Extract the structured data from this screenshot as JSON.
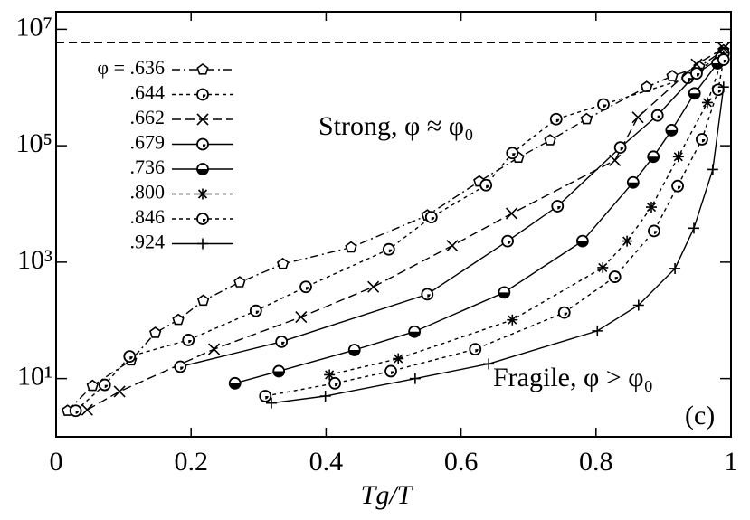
{
  "chart_data": {
    "type": "line",
    "xlabel": "Tg/T",
    "annotations": [
      "Strong, φ ≈ φ₀",
      "Fragile, φ > φ₀",
      "(c)"
    ],
    "xlim": [
      0,
      1
    ],
    "ylim": [
      1,
      20000000
    ],
    "ylog": true,
    "xticks": [
      0,
      0.2,
      0.4,
      0.6,
      0.8,
      1
    ],
    "yticks": [
      {
        "value": 10,
        "label": "10¹"
      },
      {
        "value": 1000,
        "label": "10³"
      },
      {
        "value": 100000,
        "label": "10⁵"
      },
      {
        "value": 10000000,
        "label": "10⁷"
      }
    ],
    "hline": 6000000,
    "legend": "top-left",
    "series": [
      {
        "name": "φ = .636",
        "color": "#000000",
        "marker": "pentagon",
        "dash": "9,4,2,4",
        "x": [
          0.017,
          0.054,
          0.111,
          0.147,
          0.181,
          0.218,
          0.272,
          0.336,
          0.437,
          0.55,
          0.627,
          0.685,
          0.732,
          0.786,
          0.875,
          0.913,
          0.953,
          0.989
        ],
        "values": [
          2.8,
          7.5,
          20.6,
          61,
          102,
          218,
          451,
          931,
          1790,
          6350,
          24300,
          62400,
          124000,
          286000,
          1020000,
          1570000,
          2260000,
          4350000
        ]
      },
      {
        "name": ".644",
        "color": "#000000",
        "marker": "circle",
        "dash": "4,4",
        "x": [
          0.029,
          0.072,
          0.109,
          0.196,
          0.296,
          0.37,
          0.493,
          0.556,
          0.637,
          0.676,
          0.741,
          0.811,
          0.936,
          0.989
        ],
        "values": [
          2.8,
          7.8,
          24,
          46,
          146,
          376,
          1660,
          5920,
          21000,
          74800,
          286000,
          512000,
          1460000,
          3900000
        ]
      },
      {
        "name": ".662",
        "color": "#000000",
        "marker": "x",
        "dash": "10,5",
        "x": [
          0.046,
          0.094,
          0.234,
          0.363,
          0.47,
          0.587,
          0.675,
          0.828,
          0.862,
          0.949,
          0.989
        ],
        "values": [
          2.9,
          6.0,
          32,
          114,
          376,
          1920,
          6840,
          56000,
          308000,
          2500000,
          4700000
        ]
      },
      {
        "name": ".679",
        "color": "#000000",
        "marker": "circle",
        "dash": "",
        "x": [
          0.184,
          0.334,
          0.55,
          0.669,
          0.743,
          0.836,
          0.891,
          0.949,
          0.985
        ],
        "values": [
          16,
          43,
          281,
          2300,
          9140,
          93000,
          331000,
          1750000,
          3250000
        ]
      },
      {
        "name": ".736",
        "color": "#000000",
        "marker": "half",
        "dash": "",
        "x": [
          0.265,
          0.33,
          0.442,
          0.531,
          0.664,
          0.78,
          0.855,
          0.885,
          0.912,
          0.946,
          0.98
        ],
        "values": [
          8.3,
          13.4,
          31,
          64,
          302,
          2300,
          23400,
          64700,
          185000,
          791000,
          2600000
        ]
      },
      {
        "name": ".800",
        "color": "#000000",
        "marker": "star",
        "dash": "4,4",
        "x": [
          0.405,
          0.507,
          0.676,
          0.81,
          0.846,
          0.882,
          0.922,
          0.965,
          0.989
        ],
        "values": [
          11.6,
          22,
          102,
          805,
          2300,
          8810,
          64700,
          550000,
          3500000
        ]
      },
      {
        "name": ".846",
        "color": "#000000",
        "marker": "circle",
        "dash": "4,4",
        "x": [
          0.31,
          0.413,
          0.496,
          0.621,
          0.753,
          0.828,
          0.886,
          0.921,
          0.957,
          0.981,
          0.989
        ],
        "values": [
          5.0,
          8.3,
          13.4,
          32,
          136,
          560,
          3430,
          20300,
          129000,
          914000,
          3000000
        ]
      },
      {
        "name": ".924",
        "color": "#000000",
        "marker": "plus",
        "dash": "",
        "x": [
          0.319,
          0.399,
          0.532,
          0.641,
          0.802,
          0.863,
          0.917,
          0.945,
          0.973,
          0.989
        ],
        "values": [
          3.8,
          5.0,
          10,
          17.9,
          66,
          182,
          776,
          3830,
          39000,
          1020000
        ]
      }
    ]
  }
}
